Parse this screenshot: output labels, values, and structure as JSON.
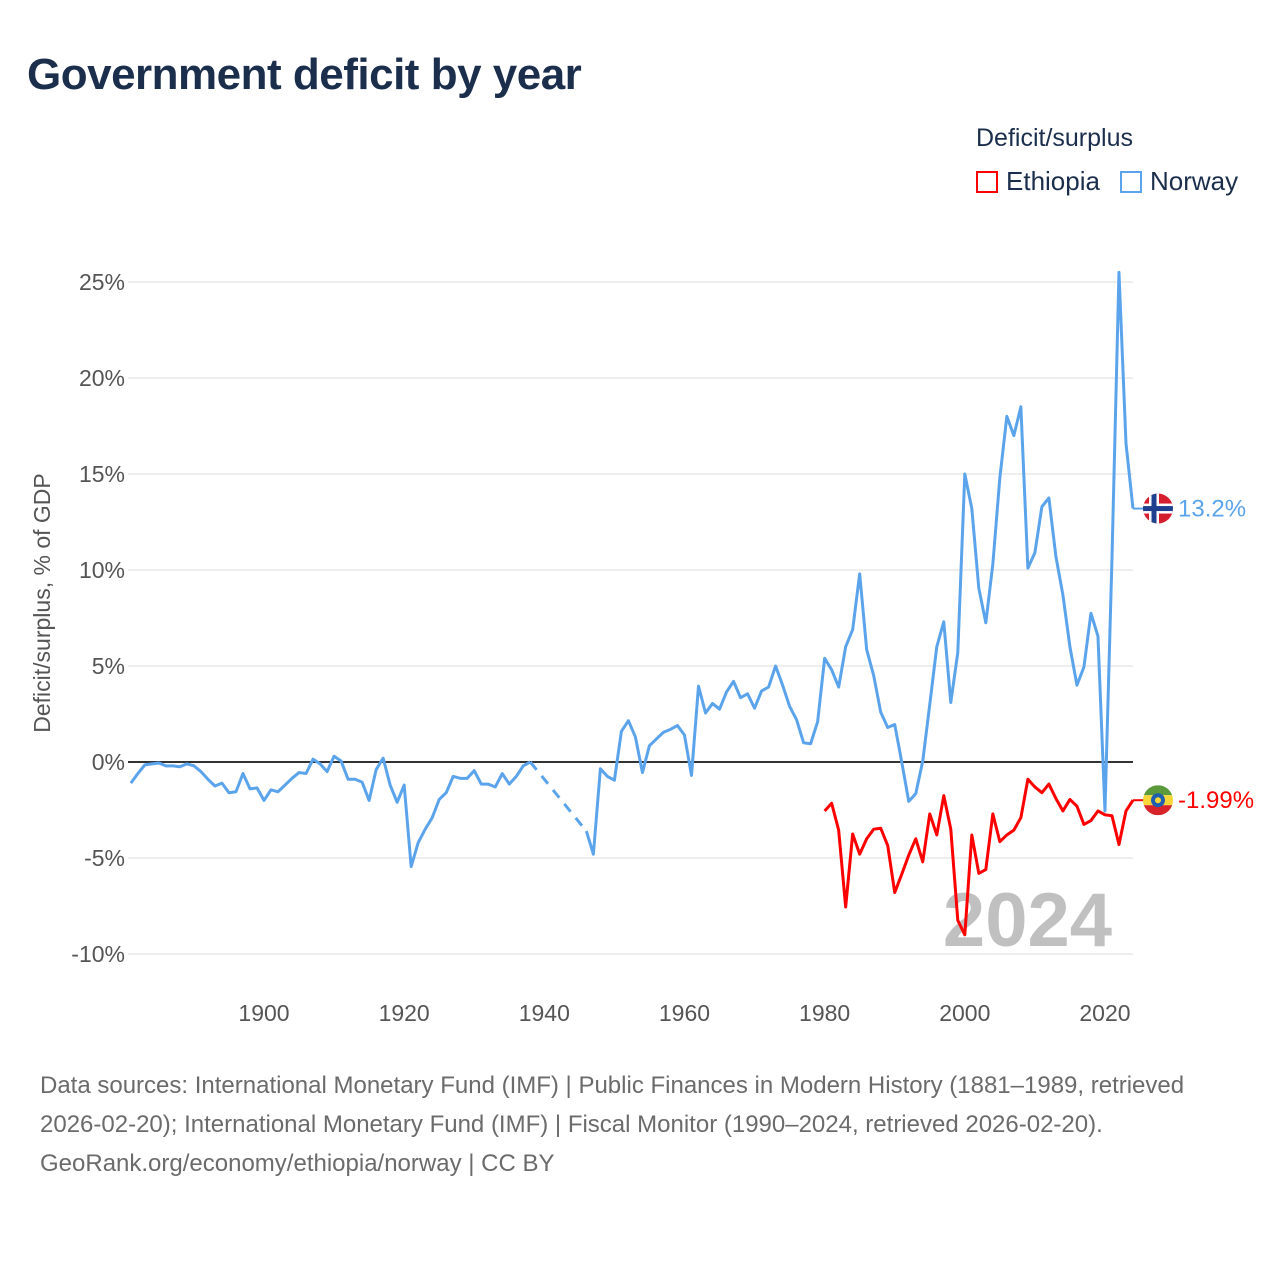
{
  "title": "Government deficit by year",
  "legend": {
    "title": "Deficit/surplus",
    "items": [
      {
        "label": "Ethiopia",
        "color": "#ff0000"
      },
      {
        "label": "Norway",
        "color": "#5ba4ec"
      }
    ]
  },
  "footer": {
    "sources": "Data sources: International Monetary Fund (IMF) | Public Finances in Modern History (1881–1989, retrieved 2026-02-20); International Monetary Fund (IMF) | Fiscal Monitor (1990–2024, retrieved 2026-02-20).",
    "credit": "GeoRank.org/economy/ethiopia/norway | CC BY"
  },
  "chart_data": {
    "type": "line",
    "title": "Government deficit by year",
    "xlabel": "",
    "ylabel": "Deficit/surplus, % of GDP",
    "xlim": [
      1881,
      2024
    ],
    "ylim": [
      -11.5,
      26
    ],
    "x_ticks": [
      1900,
      1920,
      1940,
      1960,
      1980,
      2000,
      2020
    ],
    "y_ticks": [
      -10,
      -5,
      0,
      5,
      10,
      15,
      20,
      25
    ],
    "y_tick_labels": [
      "-10%",
      "-5%",
      "0%",
      "5%",
      "10%",
      "15%",
      "20%",
      "25%"
    ],
    "grid": true,
    "year_watermark": "2024",
    "legend_placement": "top-right",
    "series": [
      {
        "name": "Norway",
        "color": "#5ba4ec",
        "end_label": "13.2%",
        "start_year": 1881,
        "values": [
          -1.1,
          -0.6,
          -0.15,
          -0.1,
          -0.05,
          -0.2,
          -0.2,
          -0.25,
          -0.1,
          -0.2,
          -0.5,
          -0.9,
          -1.25,
          -1.1,
          -1.6,
          -1.55,
          -0.6,
          -1.4,
          -1.35,
          -2.0,
          -1.45,
          -1.55,
          -1.2,
          -0.85,
          -0.55,
          -0.6,
          0.15,
          -0.1,
          -0.5,
          0.3,
          0.05,
          -0.9,
          -0.9,
          -1.05,
          -2.0,
          -0.4,
          0.2,
          -1.2,
          -2.1,
          -1.2,
          -5.45,
          -4.2,
          -3.5,
          -2.9,
          -1.95,
          -1.6,
          -0.75,
          -0.85,
          -0.85,
          -0.45,
          -1.15,
          -1.15,
          -1.3,
          -0.6,
          -1.15,
          -0.75,
          -0.2,
          0.0,
          null,
          null,
          null,
          null,
          null,
          null,
          null,
          -3.6,
          -4.8,
          -0.35,
          -0.75,
          -0.95,
          1.6,
          2.15,
          1.3,
          -0.55,
          0.85,
          1.2,
          1.55,
          1.7,
          1.9,
          1.4,
          -0.7,
          3.95,
          2.55,
          3.05,
          2.75,
          3.65,
          4.2,
          3.35,
          3.55,
          2.8,
          3.7,
          3.9,
          5.0,
          4.0,
          2.9,
          2.2,
          1.0,
          0.95,
          2.1,
          5.4,
          4.8,
          3.9,
          6.0,
          6.9,
          9.8,
          5.85,
          4.5,
          2.6,
          1.8,
          1.95,
          0.0,
          -2.05,
          -1.65,
          0.05,
          3.0,
          6.0,
          7.3,
          3.1,
          5.7,
          15.0,
          13.2,
          9.05,
          7.25,
          10.3,
          14.8,
          18.0,
          17.0,
          18.5,
          10.1,
          10.9,
          13.3,
          13.75,
          10.7,
          8.7,
          6.0,
          4.0,
          4.95,
          7.75,
          6.55,
          -2.55,
          10.6,
          25.5,
          16.6,
          13.2
        ]
      },
      {
        "name": "Ethiopia",
        "color": "#ff0000",
        "end_label": "-1.99%",
        "start_year": 1980,
        "values": [
          -2.55,
          -2.15,
          -3.55,
          -7.55,
          -3.75,
          -4.8,
          -4.0,
          -3.5,
          -3.45,
          -4.35,
          -6.8,
          -5.85,
          -4.85,
          -4.0,
          -5.2,
          -2.7,
          -3.8,
          -1.75,
          -3.5,
          -8.25,
          -9.0,
          -3.8,
          -5.8,
          -5.6,
          -2.7,
          -4.15,
          -3.8,
          -3.55,
          -2.9,
          -0.9,
          -1.3,
          -1.6,
          -1.15,
          -1.9,
          -2.55,
          -1.95,
          -2.3,
          -3.25,
          -3.05,
          -2.55,
          -2.75,
          -2.8,
          -4.3,
          -2.55,
          -1.99
        ]
      }
    ]
  }
}
